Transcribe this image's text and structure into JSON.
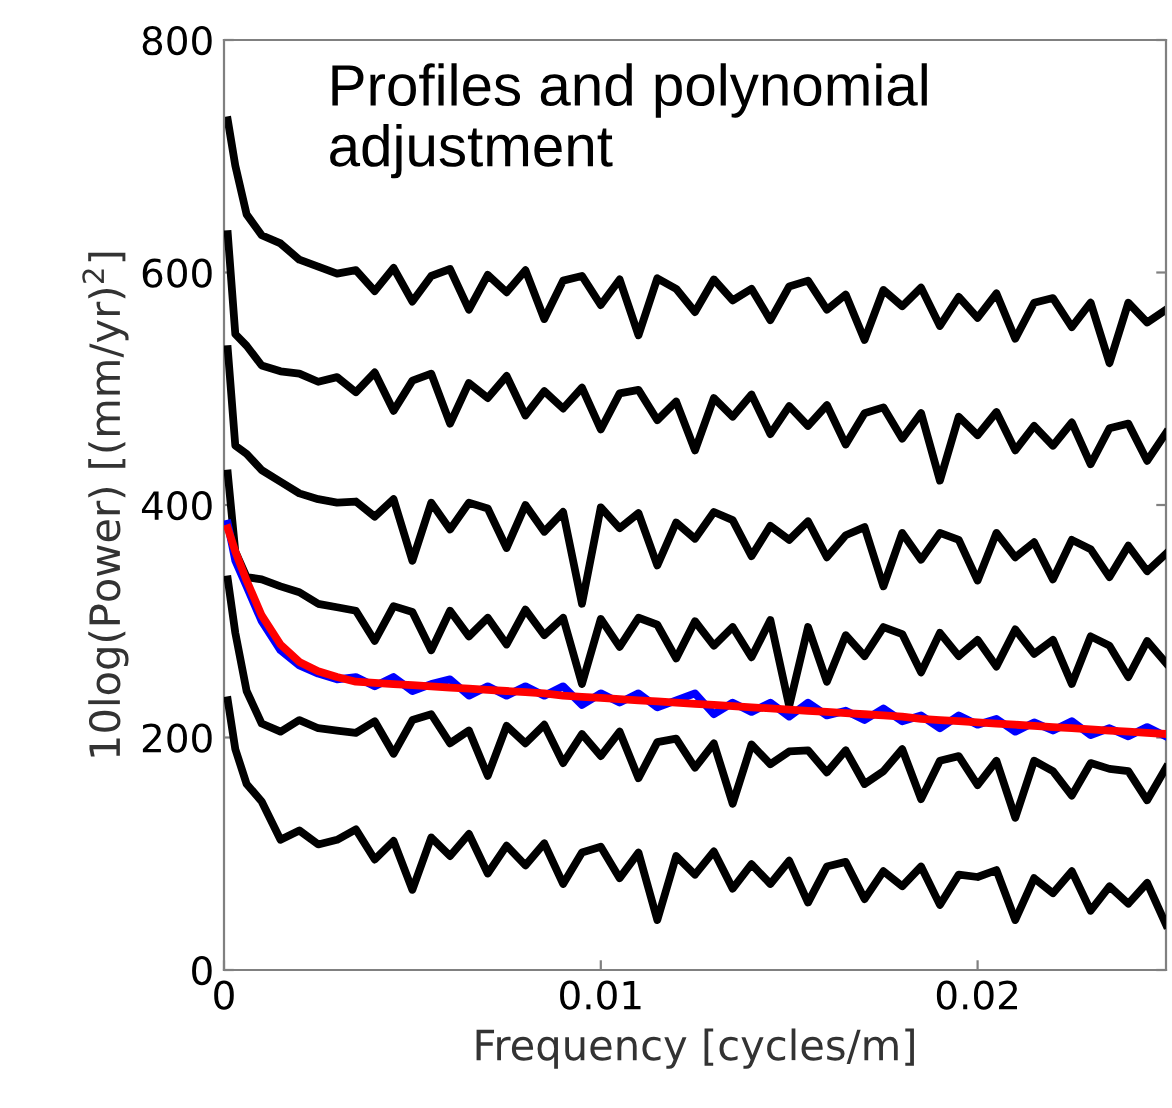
{
  "chart_data": {
    "type": "line",
    "title": "Profiles and polynomial adjustment",
    "xlabel": "Frequency [cycles/m]",
    "ylabel": "10log(Power) [(mm/yr)$^{2}$]",
    "x": [
      0.0001,
      0.0003,
      0.0006,
      0.001,
      0.0015,
      0.002,
      0.0025,
      0.003,
      0.0035,
      0.004,
      0.0045,
      0.005,
      0.0055,
      0.006,
      0.0065,
      0.007,
      0.0075,
      0.008,
      0.0085,
      0.009,
      0.0095,
      0.01,
      0.0105,
      0.011,
      0.0115,
      0.012,
      0.0125,
      0.013,
      0.0135,
      0.014,
      0.0145,
      0.015,
      0.0155,
      0.016,
      0.0165,
      0.017,
      0.0175,
      0.018,
      0.0185,
      0.019,
      0.0195,
      0.02,
      0.0205,
      0.021,
      0.0215,
      0.022,
      0.0225,
      0.023,
      0.0235,
      0.024,
      0.0245,
      0.025
    ],
    "series": [
      {
        "color": "#000000",
        "values": [
          731,
          692,
          650,
          632,
          625,
          611,
          605,
          599,
          602,
          584,
          604,
          575,
          597,
          603,
          568,
          598,
          583,
          602,
          560,
          593,
          597,
          572,
          594,
          546,
          595,
          586,
          566,
          594,
          576,
          586,
          559,
          588,
          593,
          568,
          581,
          542,
          585,
          571,
          587,
          554,
          579,
          561,
          582,
          543,
          574,
          578,
          553,
          574,
          522,
          574,
          557,
          568
        ]
      },
      {
        "color": "#000000",
        "values": [
          633,
          547,
          537,
          520,
          515,
          513,
          506,
          510,
          497,
          514,
          481,
          507,
          513,
          470,
          505,
          492,
          511,
          477,
          498,
          483,
          501,
          465,
          496,
          499,
          473,
          489,
          447,
          492,
          476,
          495,
          461,
          485,
          468,
          486,
          452,
          479,
          484,
          457,
          479,
          421,
          476,
          460,
          480,
          447,
          468,
          451,
          471,
          435,
          466,
          470,
          438,
          462
        ]
      },
      {
        "color": "#000000",
        "values": [
          534,
          451,
          444,
          430,
          420,
          410,
          405,
          402,
          403,
          390,
          405,
          352,
          402,
          379,
          402,
          397,
          363,
          400,
          377,
          394,
          315,
          398,
          380,
          393,
          348,
          385,
          371,
          394,
          387,
          356,
          382,
          370,
          386,
          355,
          374,
          381,
          330,
          376,
          353,
          376,
          370,
          335,
          376,
          355,
          368,
          336,
          370,
          362,
          338,
          365,
          343,
          358
        ]
      },
      {
        "color": "#000000",
        "values": [
          427,
          360,
          338,
          336,
          330,
          325,
          315,
          312,
          309,
          283,
          313,
          308,
          275,
          309,
          287,
          303,
          280,
          310,
          288,
          303,
          246,
          302,
          278,
          303,
          297,
          268,
          300,
          279,
          295,
          269,
          301,
          227,
          295,
          248,
          288,
          270,
          295,
          289,
          256,
          290,
          270,
          284,
          261,
          293,
          272,
          284,
          246,
          287,
          279,
          252,
          283,
          264
        ]
      },
      {
        "color": "#0000ff",
        "values": [
          384,
          352,
          330,
          300,
          275,
          262,
          255,
          250,
          252,
          244,
          252,
          240,
          246,
          250,
          236,
          244,
          236,
          244,
          236,
          244,
          228,
          238,
          230,
          238,
          226,
          232,
          238,
          220,
          230,
          222,
          230,
          218,
          230,
          219,
          223,
          215,
          225,
          214,
          219,
          208,
          219,
          211,
          216,
          205,
          213,
          206,
          214,
          202,
          208,
          201,
          209,
          201
        ]
      },
      {
        "color": "#000000",
        "values": [
          336,
          290,
          240,
          212,
          205,
          215,
          208,
          206,
          204,
          214,
          186,
          215,
          220,
          195,
          206,
          167,
          210,
          195,
          211,
          178,
          203,
          184,
          205,
          165,
          196,
          199,
          174,
          195,
          143,
          194,
          177,
          188,
          189,
          170,
          189,
          160,
          171,
          190,
          147,
          180,
          184,
          159,
          180,
          131,
          180,
          171,
          150,
          178,
          173,
          171,
          146,
          174
        ]
      },
      {
        "color": "#000000",
        "values": [
          232,
          190,
          160,
          145,
          112,
          120,
          108,
          112,
          121,
          95,
          111,
          69,
          114,
          98,
          117,
          83,
          107,
          90,
          109,
          74,
          101,
          106,
          79,
          101,
          43,
          98,
          82,
          102,
          70,
          91,
          74,
          94,
          58,
          89,
          93,
          61,
          85,
          72,
          89,
          56,
          82,
          80,
          86,
          43,
          79,
          66,
          85,
          51,
          72,
          57,
          75,
          39
        ]
      },
      {
        "color": "#ff0000",
        "values": [
          380,
          360,
          335,
          305,
          280,
          265,
          257,
          252,
          248,
          247,
          246,
          245,
          244,
          243,
          242,
          241,
          240,
          239,
          238,
          236,
          235,
          234,
          233,
          232,
          231,
          230,
          229,
          228,
          227,
          226,
          225,
          224,
          223,
          222,
          221,
          220,
          219,
          218,
          216,
          215,
          214,
          213,
          212,
          211,
          210,
          209,
          208,
          207,
          206,
          205,
          204,
          203
        ]
      }
    ],
    "xlim": [
      0,
      0.025
    ],
    "xticks": [
      0,
      0.01,
      0.02
    ],
    "ylim": [
      0,
      800
    ],
    "yticks": [
      0,
      200,
      400,
      600,
      800
    ],
    "grid": false,
    "marker": "none",
    "line_style": "solid"
  }
}
